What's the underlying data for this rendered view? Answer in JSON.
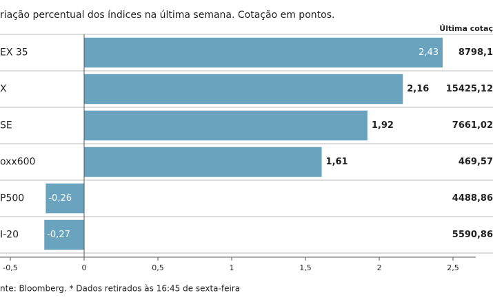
{
  "chart_data": {
    "type": "bar",
    "orientation": "horizontal",
    "title": "riação percentual dos índices na última semana. Cotação em pontos.",
    "categories": [
      "EX 35",
      "X",
      "SE",
      "oxx600",
      "P500",
      "I-20"
    ],
    "values": [
      2.43,
      2.16,
      1.92,
      1.61,
      -0.26,
      -0.27
    ],
    "value_labels": [
      "2,43",
      "2,16",
      "1,92",
      "1,61",
      "-0,26",
      "-0,27"
    ],
    "color": "#6aa3bd",
    "xlim": [
      -0.5,
      2.5
    ],
    "xticks": [
      {
        "value": -0.5,
        "label": "-0,5"
      },
      0,
      {
        "value": 0.5,
        "label": "0,5"
      },
      1,
      {
        "value": 1.5,
        "label": "1,5"
      },
      2,
      {
        "value": 2.5,
        "label": "2,5"
      }
    ],
    "column_header": "Última cotaç",
    "column_values": [
      "8798,1",
      "15425,12",
      "7661,02",
      "469,57",
      "4488,86",
      "5590,86"
    ],
    "source": "nte: Bloomberg.  * Dados retirados às 16:45 de sexta-feira"
  }
}
